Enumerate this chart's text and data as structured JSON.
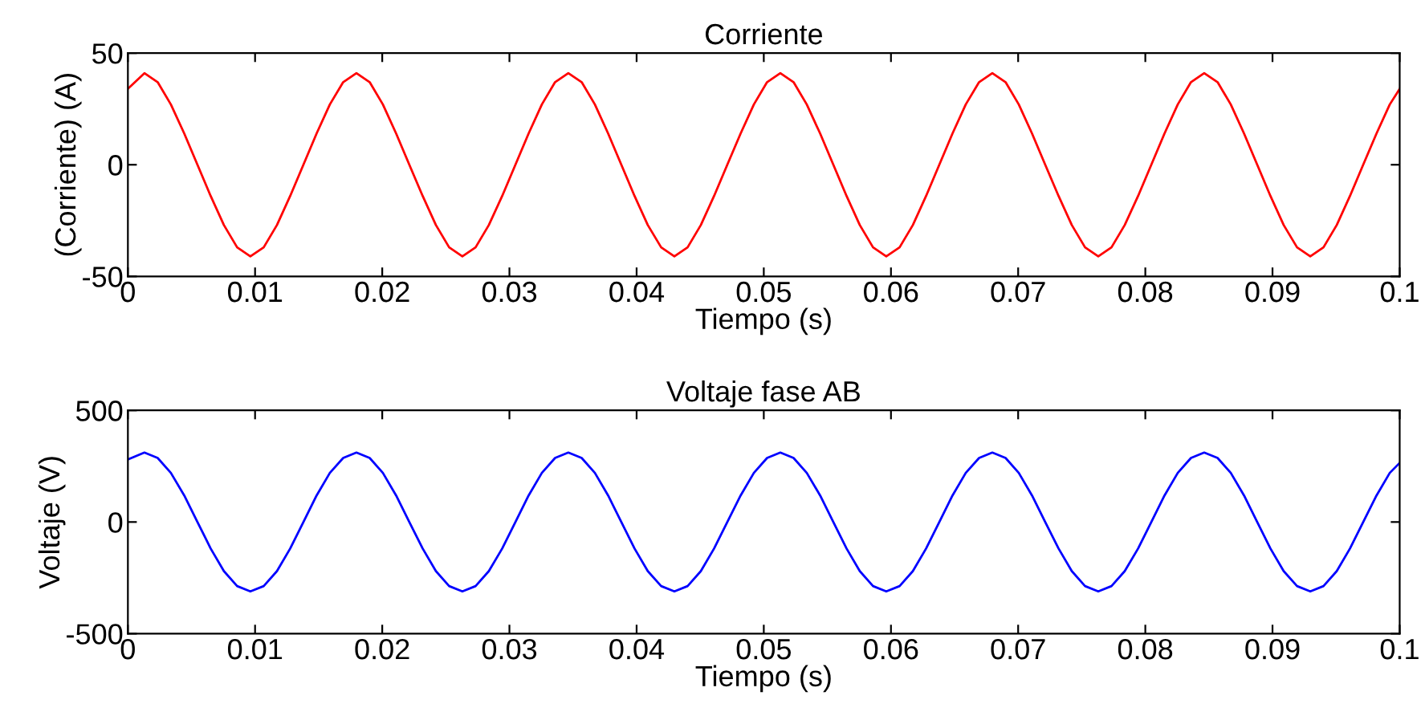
{
  "chart_data": [
    {
      "type": "line",
      "title": "Corriente",
      "xlabel": "Tiempo (s)",
      "ylabel": "(Corriente) (A)",
      "x": [
        0,
        0.0013,
        0.00234,
        0.00338,
        0.00443,
        0.00547,
        0.00651,
        0.00755,
        0.00859,
        0.00963,
        0.01068,
        0.01172,
        0.01276,
        0.0138,
        0.01484,
        0.01588,
        0.01693,
        0.01797,
        0.01901,
        0.02005,
        0.02109,
        0.02213,
        0.02318,
        0.02422,
        0.02526,
        0.0263,
        0.02734,
        0.02838,
        0.02943,
        0.03047,
        0.03151,
        0.03255,
        0.03359,
        0.03463,
        0.03568,
        0.03672,
        0.03776,
        0.0388,
        0.03984,
        0.04088,
        0.04193,
        0.04297,
        0.04401,
        0.04505,
        0.04609,
        0.04713,
        0.04818,
        0.04922,
        0.05026,
        0.0513,
        0.05234,
        0.05338,
        0.05443,
        0.05547,
        0.05651,
        0.05755,
        0.05859,
        0.05963,
        0.06068,
        0.06172,
        0.06276,
        0.0638,
        0.06484,
        0.06588,
        0.06693,
        0.06797,
        0.06901,
        0.07005,
        0.07109,
        0.07213,
        0.07318,
        0.07422,
        0.07526,
        0.0763,
        0.07734,
        0.07838,
        0.07943,
        0.08047,
        0.08151,
        0.08255,
        0.08359,
        0.08463,
        0.08568,
        0.08672,
        0.08776,
        0.0888,
        0.08984,
        0.09088,
        0.09193,
        0.09297,
        0.09401,
        0.09505,
        0.09609,
        0.09713,
        0.09818,
        0.09922,
        0.1
      ],
      "series": [
        {
          "color": "#ff0000",
          "values": [
            34,
            41,
            37,
            27,
            14,
            0,
            -14,
            -27,
            -37,
            -41,
            -37,
            -27,
            -14,
            0,
            14,
            27,
            37,
            41,
            37,
            27,
            14,
            0,
            -14,
            -27,
            -37,
            -41,
            -37,
            -27,
            -14,
            0,
            14,
            27,
            37,
            41,
            37,
            27,
            14,
            0,
            -14,
            -27,
            -37,
            -41,
            -37,
            -27,
            -14,
            0,
            14,
            27,
            37,
            41,
            37,
            27,
            14,
            0,
            -14,
            -27,
            -37,
            -41,
            -37,
            -27,
            -14,
            0,
            14,
            27,
            37,
            41,
            37,
            27,
            14,
            0,
            -14,
            -27,
            -37,
            -41,
            -37,
            -27,
            -14,
            0,
            14,
            27,
            37,
            41,
            37,
            27,
            14,
            0,
            -14,
            -27,
            -37,
            -41,
            -37,
            -27,
            -14,
            0,
            14,
            27,
            34
          ]
        }
      ],
      "xlim": [
        0,
        0.1
      ],
      "xticks": [
        0,
        0.01,
        0.02,
        0.03,
        0.04,
        0.05,
        0.06,
        0.07,
        0.08,
        0.09,
        0.1
      ],
      "ylim": [
        -50,
        50
      ],
      "yticks": [
        -50,
        0,
        50
      ],
      "grid": false,
      "legend": false
    },
    {
      "type": "line",
      "title": "Voltaje fase AB",
      "xlabel": "Tiempo (s)",
      "ylabel": "Voltaje (V)",
      "x": [
        0,
        0.0013,
        0.00234,
        0.00338,
        0.00443,
        0.00547,
        0.00651,
        0.00755,
        0.00859,
        0.00963,
        0.01068,
        0.01172,
        0.01276,
        0.0138,
        0.01484,
        0.01588,
        0.01693,
        0.01797,
        0.01901,
        0.02005,
        0.02109,
        0.02213,
        0.02318,
        0.02422,
        0.02526,
        0.0263,
        0.02734,
        0.02838,
        0.02943,
        0.03047,
        0.03151,
        0.03255,
        0.03359,
        0.03463,
        0.03568,
        0.03672,
        0.03776,
        0.0388,
        0.03984,
        0.04088,
        0.04193,
        0.04297,
        0.04401,
        0.04505,
        0.04609,
        0.04713,
        0.04818,
        0.04922,
        0.05026,
        0.0513,
        0.05234,
        0.05338,
        0.05443,
        0.05547,
        0.05651,
        0.05755,
        0.05859,
        0.05963,
        0.06068,
        0.06172,
        0.06276,
        0.0638,
        0.06484,
        0.06588,
        0.06693,
        0.06797,
        0.06901,
        0.07005,
        0.07109,
        0.07213,
        0.07318,
        0.07422,
        0.07526,
        0.0763,
        0.07734,
        0.07838,
        0.07943,
        0.08047,
        0.08151,
        0.08255,
        0.08359,
        0.08463,
        0.08568,
        0.08672,
        0.08776,
        0.0888,
        0.08984,
        0.09088,
        0.09193,
        0.09297,
        0.09401,
        0.09505,
        0.09609,
        0.09713,
        0.09818,
        0.09922,
        0.1
      ],
      "series": [
        {
          "color": "#0000ff",
          "values": [
            280,
            311,
            287,
            220,
            119,
            0,
            -119,
            -220,
            -287,
            -311,
            -287,
            -220,
            -119,
            0,
            119,
            220,
            287,
            311,
            287,
            220,
            119,
            0,
            -119,
            -220,
            -287,
            -311,
            -287,
            -220,
            -119,
            0,
            119,
            220,
            287,
            311,
            287,
            220,
            119,
            0,
            -119,
            -220,
            -287,
            -311,
            -287,
            -220,
            -119,
            0,
            119,
            220,
            287,
            311,
            287,
            220,
            119,
            0,
            -119,
            -220,
            -287,
            -311,
            -287,
            -220,
            -119,
            0,
            119,
            220,
            287,
            311,
            287,
            220,
            119,
            0,
            -119,
            -220,
            -287,
            -311,
            -287,
            -220,
            -119,
            0,
            119,
            220,
            287,
            311,
            287,
            220,
            119,
            0,
            -119,
            -220,
            -287,
            -311,
            -287,
            -220,
            -119,
            0,
            119,
            220,
            265
          ]
        }
      ],
      "xlim": [
        0,
        0.1
      ],
      "xticks": [
        0,
        0.01,
        0.02,
        0.03,
        0.04,
        0.05,
        0.06,
        0.07,
        0.08,
        0.09,
        0.1
      ],
      "ylim": [
        -500,
        500
      ],
      "yticks": [
        -500,
        0,
        500
      ],
      "grid": false,
      "legend": false
    }
  ]
}
